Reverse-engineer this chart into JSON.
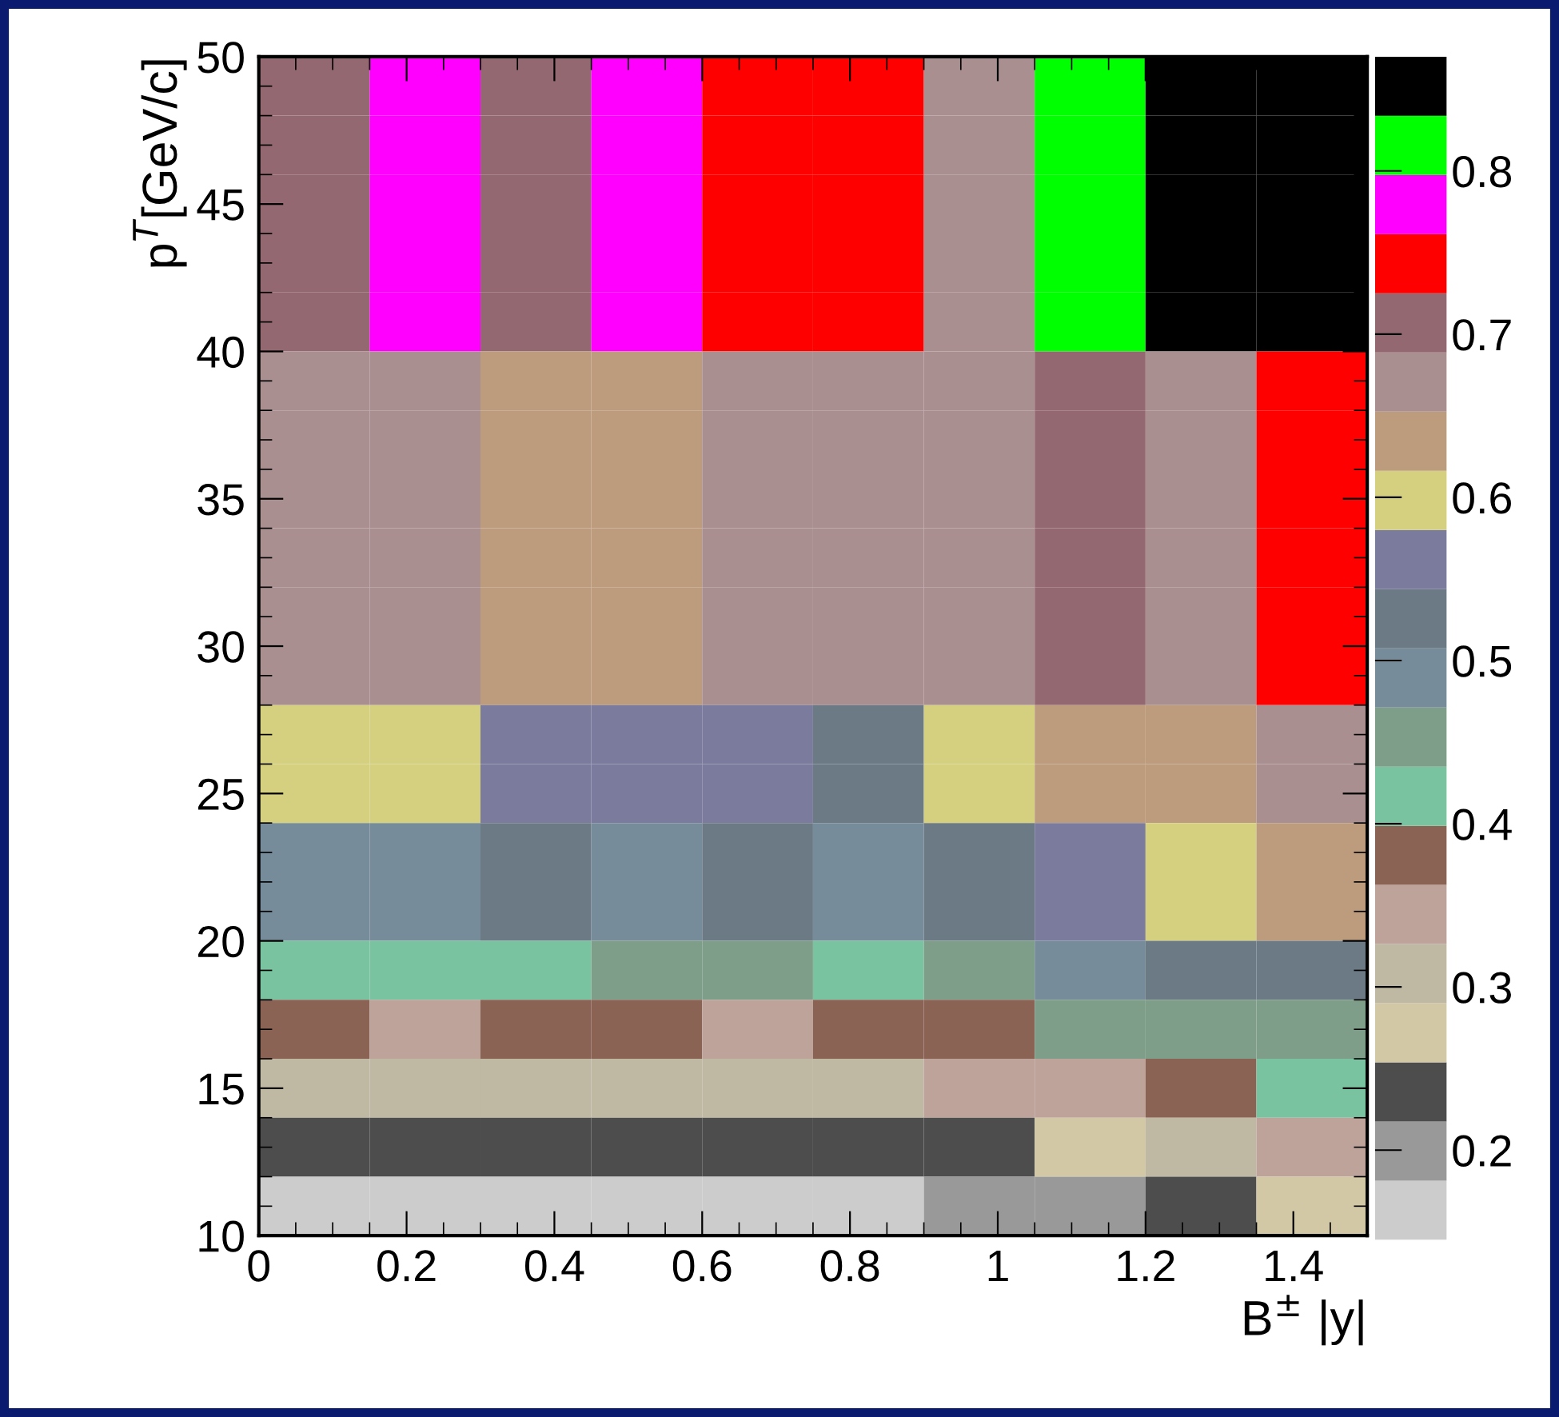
{
  "chart_data": {
    "type": "heatmap",
    "xlabel": "B$^{±}$ |y|",
    "ylabel": "p$^{T}$[GeV/c]",
    "xlim": [
      0,
      1.5
    ],
    "ylim": [
      10,
      50
    ],
    "xticks": [
      0,
      0.2,
      0.4,
      0.6,
      0.8,
      1,
      1.2,
      1.4
    ],
    "yticks": [
      10,
      15,
      20,
      25,
      30,
      35,
      40,
      45,
      50
    ],
    "clim": [
      0.145,
      0.87
    ],
    "cticks": [
      0.2,
      0.3,
      0.4,
      0.5,
      0.6,
      0.7,
      0.8
    ],
    "colors": [
      "#cccccc",
      "#999999",
      "#4d4d4d",
      "#d2c8a5",
      "#bfb8a3",
      "#bda39a",
      "#8b6355",
      "#7ac3a0",
      "#7f9e8a",
      "#778c9a",
      "#6b7a85",
      "#7b7b9e",
      "#d5cf80",
      "#bd9c7e",
      "#aa8f90",
      "#936870",
      "#ff0000",
      "#ff00ff",
      "#00ff00",
      "#000000"
    ],
    "cells": [
      [
        0.71,
        0.78,
        0.71,
        0.78,
        0.74,
        0.74,
        0.67,
        0.82,
        0.85,
        0.85
      ],
      [
        0.71,
        0.78,
        0.71,
        0.78,
        0.74,
        0.74,
        0.67,
        0.82,
        0.85,
        0.85
      ],
      [
        0.71,
        0.78,
        0.71,
        0.78,
        0.74,
        0.74,
        0.67,
        0.82,
        0.85,
        0.85
      ],
      [
        0.71,
        0.78,
        0.71,
        0.78,
        0.74,
        0.74,
        0.67,
        0.82,
        0.85,
        0.85
      ],
      [
        0.71,
        0.78,
        0.71,
        0.78,
        0.74,
        0.74,
        0.67,
        0.82,
        0.85,
        0.85
      ],
      [
        0.67,
        0.67,
        0.63,
        0.63,
        0.67,
        0.67,
        0.67,
        0.71,
        0.67,
        0.74
      ],
      [
        0.67,
        0.67,
        0.63,
        0.63,
        0.67,
        0.67,
        0.67,
        0.71,
        0.67,
        0.74
      ],
      [
        0.67,
        0.67,
        0.63,
        0.63,
        0.67,
        0.67,
        0.67,
        0.71,
        0.67,
        0.74
      ],
      [
        0.67,
        0.67,
        0.63,
        0.63,
        0.67,
        0.67,
        0.67,
        0.71,
        0.67,
        0.74
      ],
      [
        0.67,
        0.67,
        0.63,
        0.63,
        0.67,
        0.67,
        0.67,
        0.71,
        0.67,
        0.74
      ],
      [
        0.67,
        0.67,
        0.63,
        0.63,
        0.67,
        0.67,
        0.67,
        0.71,
        0.67,
        0.74
      ],
      [
        0.6,
        0.6,
        0.56,
        0.56,
        0.56,
        0.53,
        0.6,
        0.63,
        0.63,
        0.67
      ],
      [
        0.6,
        0.6,
        0.56,
        0.56,
        0.56,
        0.53,
        0.6,
        0.63,
        0.63,
        0.67
      ],
      [
        0.49,
        0.49,
        0.53,
        0.49,
        0.53,
        0.49,
        0.53,
        0.56,
        0.6,
        0.63
      ],
      [
        0.49,
        0.49,
        0.53,
        0.49,
        0.53,
        0.49,
        0.53,
        0.56,
        0.6,
        0.63
      ],
      [
        0.42,
        0.42,
        0.42,
        0.45,
        0.45,
        0.42,
        0.45,
        0.49,
        0.53,
        0.53
      ],
      [
        0.38,
        0.34,
        0.38,
        0.38,
        0.34,
        0.38,
        0.38,
        0.45,
        0.45,
        0.45
      ],
      [
        0.31,
        0.31,
        0.31,
        0.31,
        0.31,
        0.31,
        0.34,
        0.34,
        0.38,
        0.42
      ],
      [
        0.24,
        0.24,
        0.24,
        0.24,
        0.24,
        0.24,
        0.24,
        0.27,
        0.31,
        0.34
      ],
      [
        0.16,
        0.16,
        0.16,
        0.16,
        0.16,
        0.16,
        0.2,
        0.2,
        0.24,
        0.27
      ]
    ]
  }
}
